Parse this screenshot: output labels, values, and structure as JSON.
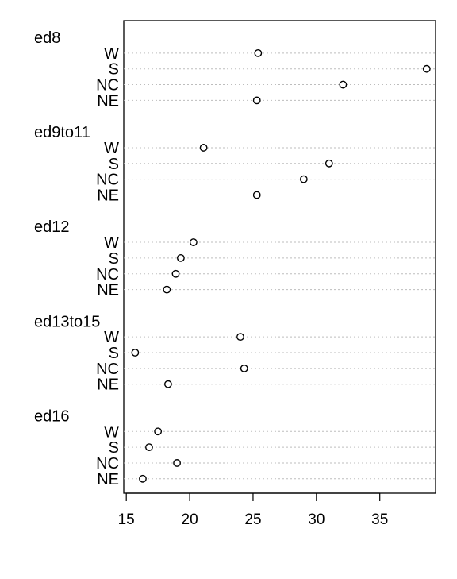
{
  "chart_data": {
    "type": "dotchart",
    "title": "",
    "xlabel": "",
    "ylabel": "",
    "xlim": [
      14.8,
      39.4
    ],
    "xticks": [
      15,
      20,
      25,
      30,
      35
    ],
    "grid": "dotted-horizontal",
    "marker": "open-circle",
    "groups": [
      {
        "name": "ed8",
        "items": [
          {
            "label": "W",
            "value": 25.4
          },
          {
            "label": "S",
            "value": 38.7
          },
          {
            "label": "NC",
            "value": 32.1
          },
          {
            "label": "NE",
            "value": 25.3
          }
        ]
      },
      {
        "name": "ed9to11",
        "items": [
          {
            "label": "W",
            "value": 21.1
          },
          {
            "label": "S",
            "value": 31.0
          },
          {
            "label": "NC",
            "value": 29.0
          },
          {
            "label": "NE",
            "value": 25.3
          }
        ]
      },
      {
        "name": "ed12",
        "items": [
          {
            "label": "W",
            "value": 20.3
          },
          {
            "label": "S",
            "value": 19.3
          },
          {
            "label": "NC",
            "value": 18.9
          },
          {
            "label": "NE",
            "value": 18.2
          }
        ]
      },
      {
        "name": "ed13to15",
        "items": [
          {
            "label": "W",
            "value": 24.0
          },
          {
            "label": "S",
            "value": 15.7
          },
          {
            "label": "NC",
            "value": 24.3
          },
          {
            "label": "NE",
            "value": 18.3
          }
        ]
      },
      {
        "name": "ed16",
        "items": [
          {
            "label": "W",
            "value": 17.5
          },
          {
            "label": "S",
            "value": 16.8
          },
          {
            "label": "NC",
            "value": 19.0
          },
          {
            "label": "NE",
            "value": 16.3
          }
        ]
      }
    ]
  }
}
